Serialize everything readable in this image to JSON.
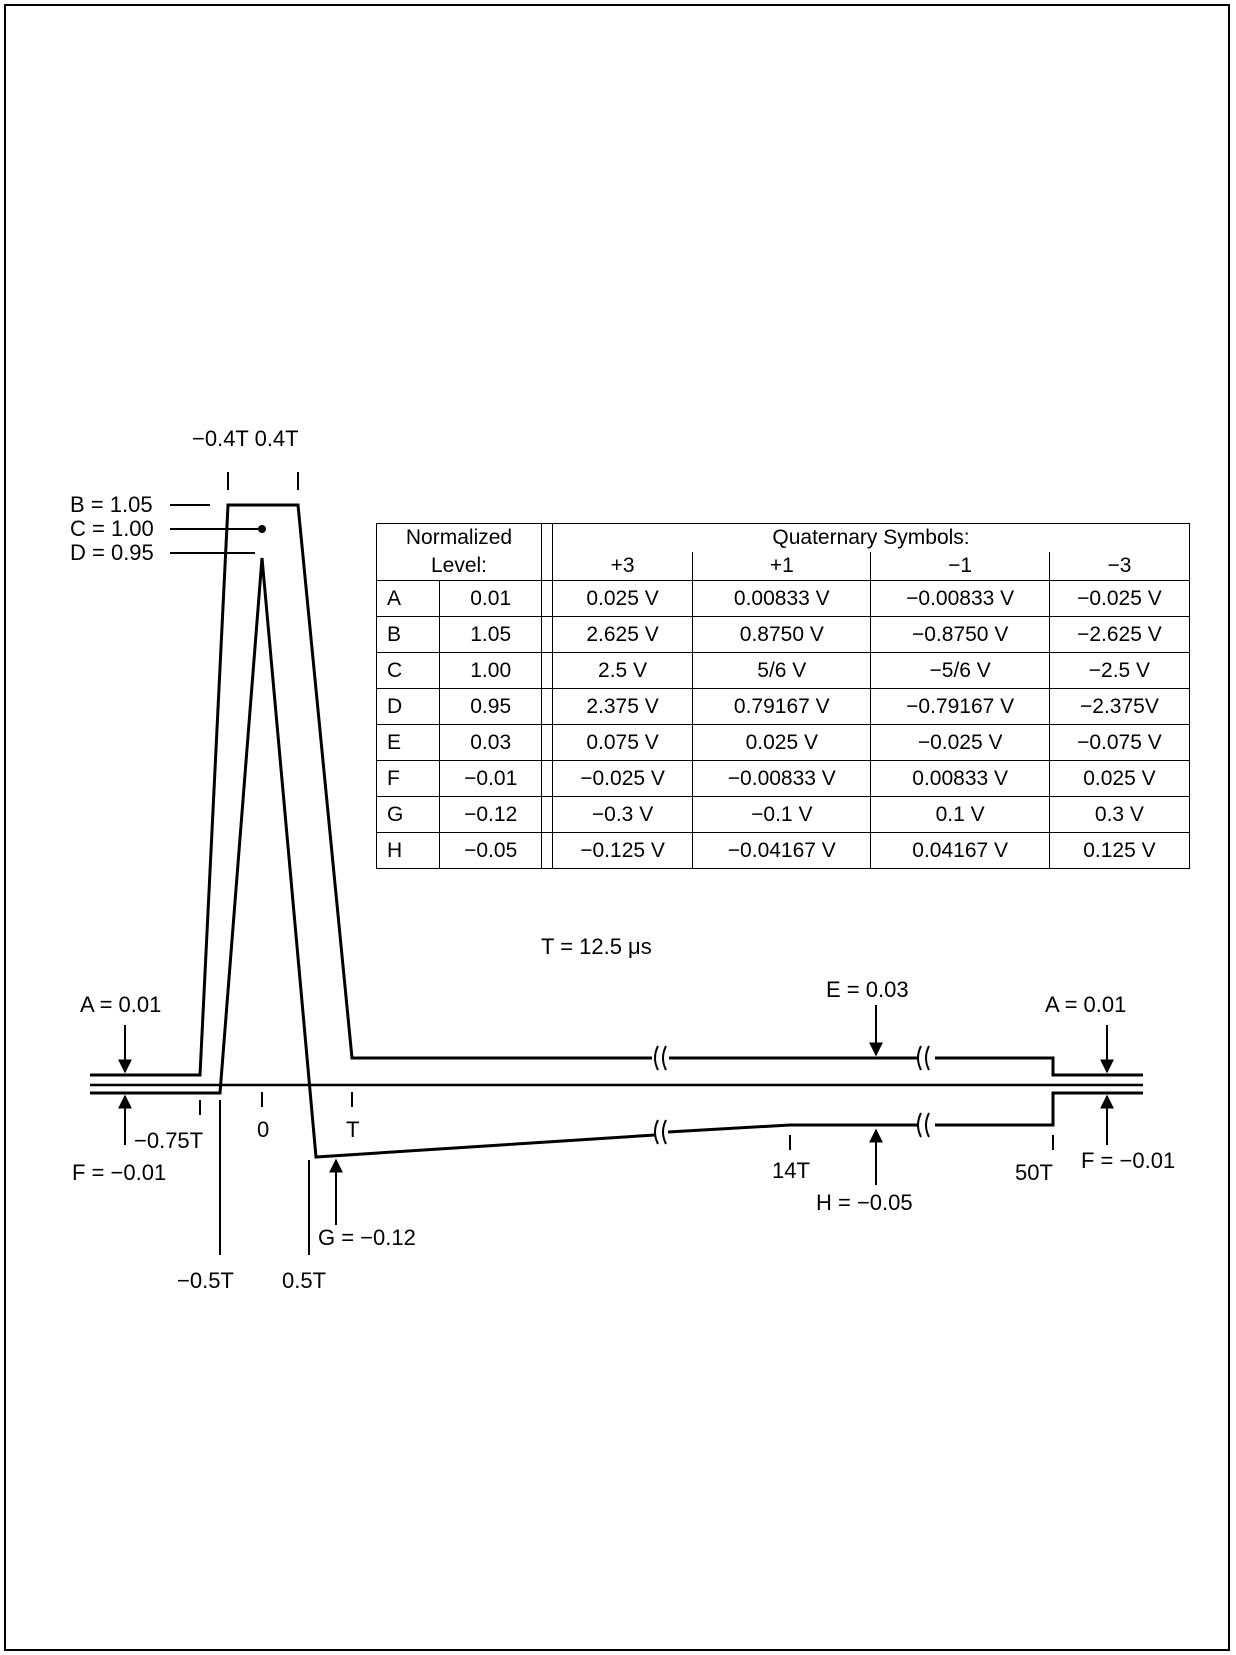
{
  "diagram": {
    "level_labels": {
      "B": "B = 1.05",
      "C": "C = 1.00",
      "D": "D = 0.95",
      "A_left": "A = 0.01",
      "F_left": "F = −0.01",
      "E": "E = 0.03",
      "A_right": "A = 0.01",
      "F_right": "F = −0.01",
      "G": "G = −0.12",
      "H": "H = −0.05"
    },
    "time_labels": {
      "top_pair": "−0.4T 0.4T",
      "neg_075T": "−0.75T",
      "zero": "0",
      "T": "T",
      "neg_05T": "−0.5T",
      "pos_05T": "0.5T",
      "t14": "14T",
      "t50": "50T"
    },
    "period": "T = 12.5 μs"
  },
  "table": {
    "header": {
      "norm_line1": "Normalized",
      "norm_line2": "Level:",
      "quat_title": "Quaternary Symbols:",
      "symbols": [
        "+3",
        "+1",
        "−1",
        "−3"
      ]
    },
    "rows": [
      {
        "letter": "A",
        "level": "0.01",
        "p3": "0.025 V",
        "p1": "0.00833 V",
        "m1": "−0.00833 V",
        "m3": "−0.025 V"
      },
      {
        "letter": "B",
        "level": "1.05",
        "p3": "2.625 V",
        "p1": "0.8750 V",
        "m1": "−0.8750 V",
        "m3": "−2.625 V"
      },
      {
        "letter": "C",
        "level": "1.00",
        "p3": "2.5 V",
        "p1": "5/6 V",
        "m1": "−5/6 V",
        "m3": "−2.5 V"
      },
      {
        "letter": "D",
        "level": "0.95",
        "p3": "2.375 V",
        "p1": "0.79167 V",
        "m1": "−0.79167 V",
        "m3": "−2.375V"
      },
      {
        "letter": "E",
        "level": "0.03",
        "p3": "0.075 V",
        "p1": "0.025 V",
        "m1": "−0.025 V",
        "m3": "−0.075 V"
      },
      {
        "letter": "F",
        "level": "−0.01",
        "p3": "−0.025 V",
        "p1": "−0.00833 V",
        "m1": "0.00833 V",
        "m3": "0.025 V"
      },
      {
        "letter": "G",
        "level": "−0.12",
        "p3": "−0.3 V",
        "p1": "−0.1 V",
        "m1": "0.1 V",
        "m3": "0.3 V"
      },
      {
        "letter": "H",
        "level": "−0.05",
        "p3": "−0.125 V",
        "p1": "−0.04167 V",
        "m1": "0.04167 V",
        "m3": "0.125 V"
      }
    ]
  }
}
